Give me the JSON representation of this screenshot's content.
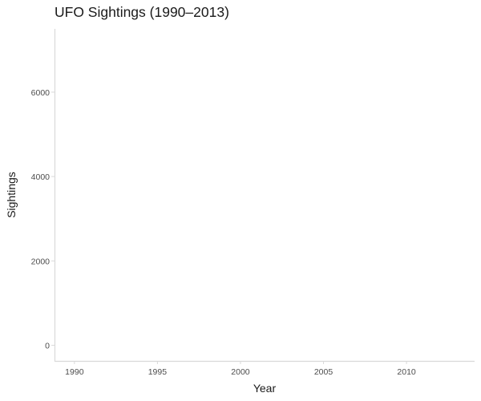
{
  "chart_data": {
    "type": "line",
    "title": "UFO Sightings (1990–2013)",
    "xlabel": "Year",
    "ylabel": "Sightings",
    "xlim": [
      1988.8,
      2014.1
    ],
    "ylim": [
      -370,
      7500
    ],
    "x_ticks": [
      1990,
      1995,
      2000,
      2005,
      2010
    ],
    "y_ticks": [
      0,
      2000,
      4000,
      6000
    ],
    "series": [],
    "grid": false,
    "legend": "none"
  }
}
